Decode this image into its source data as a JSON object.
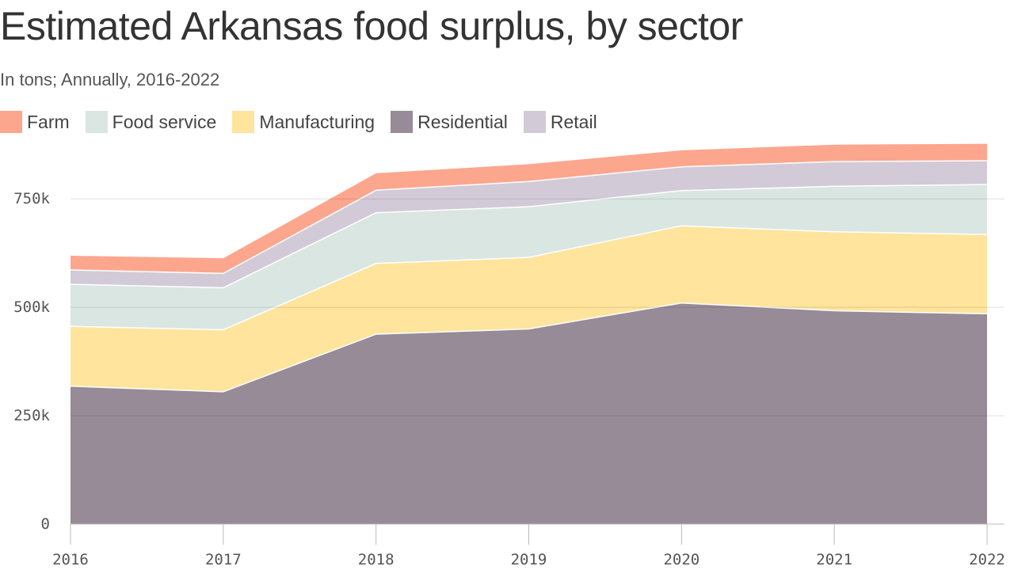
{
  "chart_data": {
    "type": "area",
    "stacked": true,
    "title": "Estimated Arkansas food surplus, by sector",
    "subtitle": "In tons; Annually, 2016-2022",
    "xlabel": "",
    "ylabel": "",
    "x": [
      "2016",
      "2017",
      "2018",
      "2019",
      "2020",
      "2021",
      "2022"
    ],
    "ylim": [
      0,
      880000
    ],
    "y_ticks": [
      {
        "value": 0,
        "label": "0"
      },
      {
        "value": 250000,
        "label": "250k"
      },
      {
        "value": 500000,
        "label": "500k"
      },
      {
        "value": 750000,
        "label": "750k"
      }
    ],
    "grid": true,
    "legend_position": "top-left",
    "series": [
      {
        "name": "Residential",
        "color": "#978b98",
        "values": [
          318000,
          305000,
          438000,
          450000,
          510000,
          492000,
          485000
        ]
      },
      {
        "name": "Manufacturing",
        "color": "#fee49c",
        "values": [
          138000,
          143000,
          163000,
          165000,
          178000,
          182000,
          183000
        ]
      },
      {
        "name": "Food service",
        "color": "#d9e6e2",
        "values": [
          97000,
          97000,
          117000,
          117000,
          81000,
          105000,
          115000
        ]
      },
      {
        "name": "Retail",
        "color": "#d3cad8",
        "values": [
          33000,
          33000,
          52000,
          58000,
          55000,
          57000,
          55000
        ]
      },
      {
        "name": "Farm",
        "color": "#fda68e",
        "values": [
          33000,
          35000,
          39000,
          40000,
          38000,
          39000,
          39000
        ]
      }
    ],
    "legend_order": [
      "Farm",
      "Food service",
      "Manufacturing",
      "Residential",
      "Retail"
    ]
  }
}
